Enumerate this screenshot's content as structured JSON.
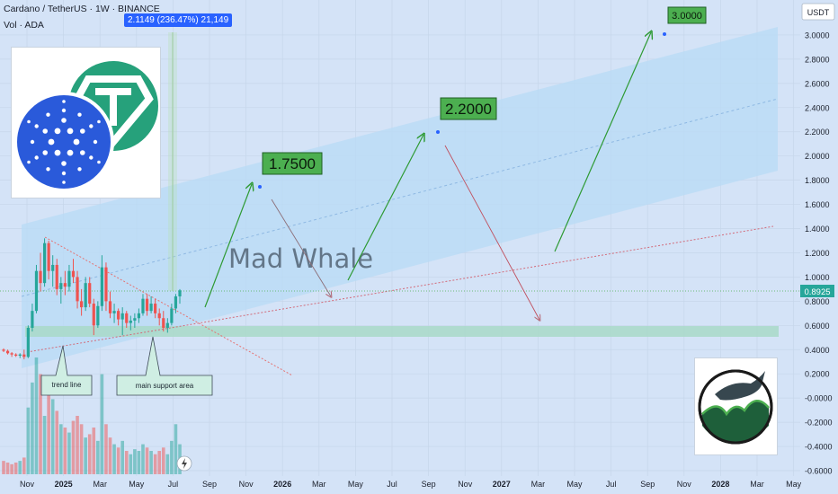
{
  "header": {
    "title": "Cardano / TetherUS · 1W · BINANCE",
    "sub": "Vol · ADA",
    "measure": "2.1149 (236.47%) 21,149"
  },
  "watermark": "Mad Whale",
  "currency": "USDT",
  "price_tag": "0.8925",
  "callouts": {
    "target1": "1.7500",
    "target2": "2.2000",
    "target3": "3.0000",
    "trend": "trend line",
    "support": "main support area"
  },
  "colors": {
    "bg": "#d4e3f7",
    "up": "#26a69a",
    "down": "#ef5350",
    "arrow": "#2e9a33",
    "target_fill": "#4caf50",
    "channel": "#b8dbf5",
    "support_zone": "#a8d9c8"
  },
  "chart_data": {
    "type": "candlestick",
    "y_ticks": [
      "3.0000",
      "2.8000",
      "2.6000",
      "2.4000",
      "2.2000",
      "2.0000",
      "1.8000",
      "1.6000",
      "1.4000",
      "1.2000",
      "1.0000",
      "0.8000",
      "0.6000",
      "0.4000",
      "0.2000",
      "-0.0000",
      "-0.2000",
      "-0.4000",
      "-0.6000"
    ],
    "ylim": [
      -0.6,
      3.2
    ],
    "x_ticks": [
      "Nov",
      "2025",
      "Mar",
      "May",
      "Jul",
      "Sep",
      "Nov",
      "2026",
      "Mar",
      "May",
      "Jul",
      "Sep",
      "Nov",
      "2027",
      "Mar",
      "May",
      "Jul",
      "Sep",
      "Nov",
      "2028",
      "Mar",
      "May"
    ],
    "x_tick_months": [
      0,
      2,
      4,
      6,
      8,
      10,
      12,
      14,
      16,
      18,
      20,
      22,
      24,
      26,
      28,
      30,
      32,
      34,
      36,
      38,
      40,
      42
    ],
    "candles": [
      [
        0.4,
        0.41,
        0.38,
        0.39
      ],
      [
        0.39,
        0.4,
        0.36,
        0.37
      ],
      [
        0.37,
        0.38,
        0.34,
        0.36
      ],
      [
        0.36,
        0.37,
        0.34,
        0.35
      ],
      [
        0.35,
        0.37,
        0.33,
        0.36
      ],
      [
        0.36,
        0.4,
        0.32,
        0.34
      ],
      [
        0.34,
        0.6,
        0.33,
        0.58
      ],
      [
        0.58,
        0.78,
        0.55,
        0.72
      ],
      [
        0.72,
        1.1,
        0.7,
        1.05
      ],
      [
        1.05,
        1.2,
        0.88,
        0.95
      ],
      [
        0.95,
        1.32,
        0.92,
        1.28
      ],
      [
        1.28,
        1.3,
        0.98,
        1.05
      ],
      [
        1.05,
        1.18,
        0.92,
        1.1
      ],
      [
        1.1,
        1.15,
        0.85,
        0.9
      ],
      [
        0.9,
        1.0,
        0.78,
        0.95
      ],
      [
        0.95,
        1.05,
        0.85,
        0.92
      ],
      [
        0.92,
        1.1,
        0.88,
        1.05
      ],
      [
        1.05,
        1.15,
        0.95,
        1.0
      ],
      [
        1.0,
        1.05,
        0.74,
        0.8
      ],
      [
        0.8,
        0.9,
        0.68,
        0.75
      ],
      [
        0.75,
        1.0,
        0.72,
        0.95
      ],
      [
        0.95,
        1.0,
        0.75,
        0.78
      ],
      [
        0.78,
        0.82,
        0.52,
        0.6
      ],
      [
        0.6,
        0.8,
        0.58,
        0.76
      ],
      [
        0.76,
        1.18,
        0.72,
        1.08
      ],
      [
        1.08,
        1.12,
        0.72,
        0.8
      ],
      [
        0.8,
        0.88,
        0.66,
        0.7
      ],
      [
        0.7,
        0.78,
        0.62,
        0.72
      ],
      [
        0.72,
        0.74,
        0.6,
        0.65
      ],
      [
        0.65,
        0.75,
        0.52,
        0.7
      ],
      [
        0.7,
        0.72,
        0.58,
        0.62
      ],
      [
        0.62,
        0.68,
        0.56,
        0.64
      ],
      [
        0.64,
        0.7,
        0.58,
        0.66
      ],
      [
        0.66,
        0.74,
        0.62,
        0.7
      ],
      [
        0.7,
        0.86,
        0.68,
        0.82
      ],
      [
        0.82,
        0.86,
        0.68,
        0.72
      ],
      [
        0.72,
        0.84,
        0.7,
        0.78
      ],
      [
        0.78,
        0.82,
        0.66,
        0.7
      ],
      [
        0.7,
        0.74,
        0.6,
        0.66
      ],
      [
        0.66,
        0.72,
        0.55,
        0.58
      ],
      [
        0.58,
        0.66,
        0.54,
        0.62
      ],
      [
        0.62,
        0.78,
        0.6,
        0.74
      ],
      [
        0.74,
        0.86,
        0.7,
        0.84
      ],
      [
        0.84,
        0.9,
        0.78,
        0.89
      ]
    ],
    "volumes": [
      8,
      7,
      6,
      7,
      8,
      10,
      40,
      55,
      70,
      60,
      35,
      50,
      45,
      38,
      30,
      28,
      25,
      32,
      35,
      30,
      22,
      24,
      28,
      20,
      60,
      30,
      22,
      18,
      16,
      20,
      14,
      12,
      15,
      14,
      18,
      16,
      14,
      12,
      14,
      16,
      12,
      20,
      30,
      18
    ]
  }
}
